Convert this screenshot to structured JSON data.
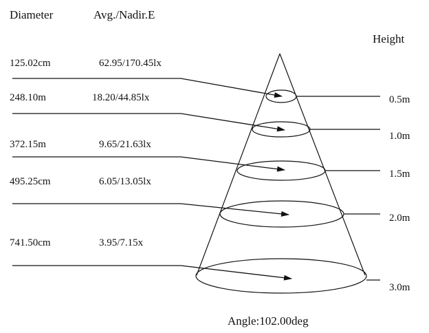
{
  "headers": {
    "diameter": "Diameter",
    "illuminance": "Avg./Nadir.E",
    "height": "Height"
  },
  "rows": [
    {
      "diameter": "125.02cm",
      "illuminance": "62.95/170.45lx",
      "height": "0.5m"
    },
    {
      "diameter": "248.10m",
      "illuminance": "18.20/44.85lx",
      "height": "1.0m"
    },
    {
      "diameter": "372.15m",
      "illuminance": "9.65/21.63lx",
      "height": "1.5m"
    },
    {
      "diameter": "495.25cm",
      "illuminance": "6.05/13.05lx",
      "height": "2.0m"
    },
    {
      "diameter": "741.50cm",
      "illuminance": "3.95/7.15x",
      "height": "3.0m"
    }
  ],
  "footer": {
    "angle": "Angle:102.00deg"
  },
  "colors": {
    "ink": "#111111",
    "background": "#ffffff"
  }
}
